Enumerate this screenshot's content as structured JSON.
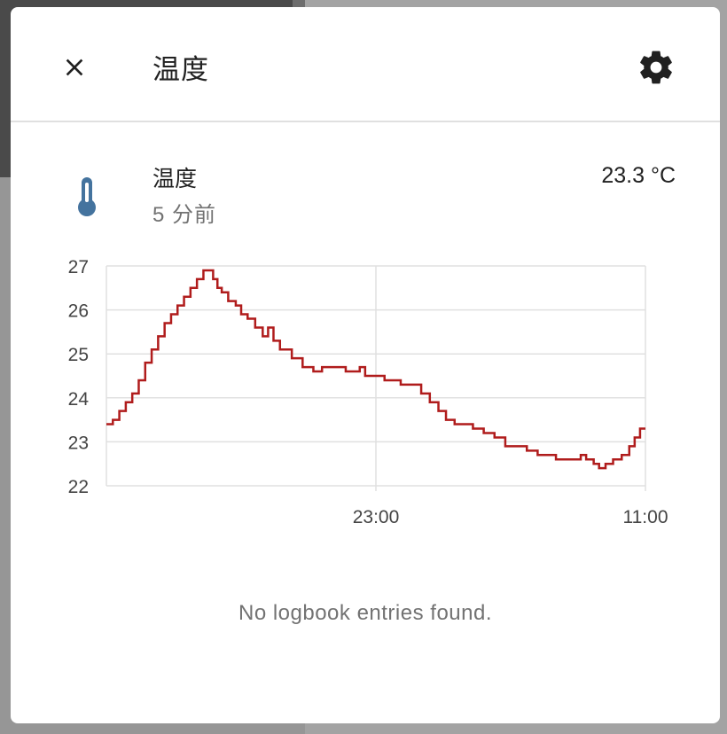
{
  "dialog": {
    "title": "温度",
    "close_icon": "close-icon",
    "settings_icon": "gear-icon"
  },
  "entity": {
    "icon": "thermometer-icon",
    "name": "温度",
    "last_changed": "5 分前",
    "state": "23.3 °C",
    "icon_color": "#44739e"
  },
  "chart_data": {
    "type": "line",
    "step": true,
    "line_color": "#b01c1c",
    "y_ticks": [
      "22",
      "23",
      "24",
      "25",
      "26",
      "27"
    ],
    "ylim": [
      22,
      27
    ],
    "x_ticks": [
      "23:00",
      "11:00"
    ],
    "grid": true,
    "series": [
      {
        "values": [
          [
            0.0,
            23.4
          ],
          [
            0.012,
            23.5
          ],
          [
            0.024,
            23.7
          ],
          [
            0.036,
            23.9
          ],
          [
            0.048,
            24.1
          ],
          [
            0.06,
            24.4
          ],
          [
            0.072,
            24.8
          ],
          [
            0.084,
            25.1
          ],
          [
            0.096,
            25.4
          ],
          [
            0.108,
            25.7
          ],
          [
            0.12,
            25.9
          ],
          [
            0.132,
            26.1
          ],
          [
            0.144,
            26.3
          ],
          [
            0.156,
            26.5
          ],
          [
            0.168,
            26.7
          ],
          [
            0.18,
            26.9
          ],
          [
            0.19,
            26.9
          ],
          [
            0.198,
            26.7
          ],
          [
            0.206,
            26.5
          ],
          [
            0.214,
            26.4
          ],
          [
            0.226,
            26.2
          ],
          [
            0.24,
            26.1
          ],
          [
            0.25,
            25.9
          ],
          [
            0.262,
            25.8
          ],
          [
            0.276,
            25.6
          ],
          [
            0.29,
            25.4
          ],
          [
            0.3,
            25.6
          ],
          [
            0.31,
            25.3
          ],
          [
            0.322,
            25.1
          ],
          [
            0.344,
            24.9
          ],
          [
            0.364,
            24.7
          ],
          [
            0.384,
            24.6
          ],
          [
            0.4,
            24.7
          ],
          [
            0.444,
            24.6
          ],
          [
            0.47,
            24.7
          ],
          [
            0.48,
            24.5
          ],
          [
            0.5,
            24.5
          ],
          [
            0.516,
            24.4
          ],
          [
            0.546,
            24.3
          ],
          [
            0.566,
            24.3
          ],
          [
            0.584,
            24.1
          ],
          [
            0.6,
            23.9
          ],
          [
            0.616,
            23.7
          ],
          [
            0.63,
            23.5
          ],
          [
            0.646,
            23.4
          ],
          [
            0.68,
            23.3
          ],
          [
            0.7,
            23.2
          ],
          [
            0.72,
            23.1
          ],
          [
            0.74,
            22.9
          ],
          [
            0.78,
            22.8
          ],
          [
            0.8,
            22.7
          ],
          [
            0.834,
            22.6
          ],
          [
            0.866,
            22.6
          ],
          [
            0.88,
            22.7
          ],
          [
            0.89,
            22.6
          ],
          [
            0.904,
            22.5
          ],
          [
            0.914,
            22.4
          ],
          [
            0.926,
            22.5
          ],
          [
            0.94,
            22.6
          ],
          [
            0.956,
            22.7
          ],
          [
            0.97,
            22.9
          ],
          [
            0.98,
            23.1
          ],
          [
            0.99,
            23.3
          ],
          [
            1.0,
            23.3
          ]
        ]
      }
    ]
  },
  "logbook": {
    "empty_text": "No logbook entries found."
  }
}
